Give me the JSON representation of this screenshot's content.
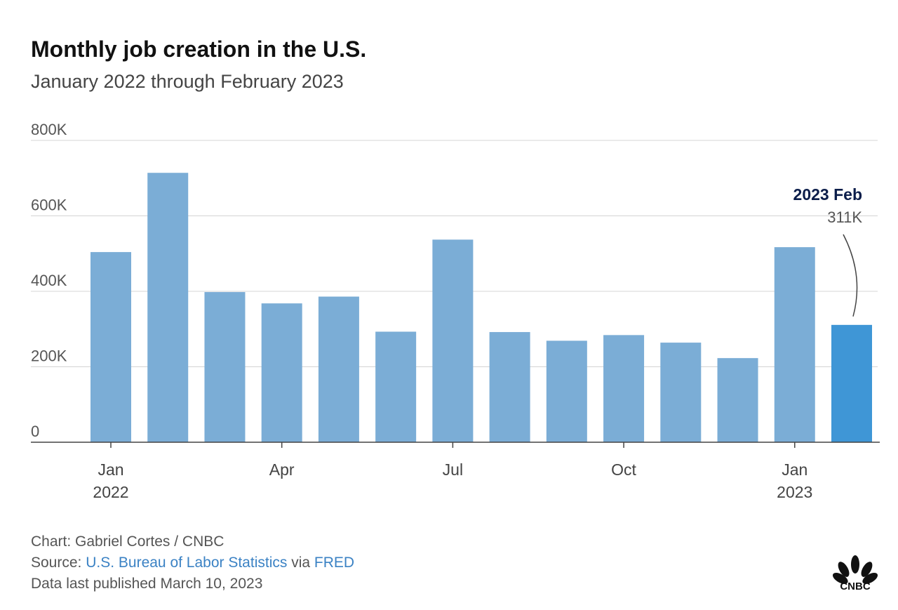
{
  "header": {
    "title": "Monthly job creation in the U.S.",
    "subtitle": "January 2022 through February 2023"
  },
  "chart_data": {
    "type": "bar",
    "title": "Monthly job creation in the U.S.",
    "subtitle": "January 2022 through February 2023",
    "categories": [
      "Jan 2022",
      "Feb 2022",
      "Mar 2022",
      "Apr 2022",
      "May 2022",
      "Jun 2022",
      "Jul 2022",
      "Aug 2022",
      "Sep 2022",
      "Oct 2022",
      "Nov 2022",
      "Dec 2022",
      "Jan 2023",
      "Feb 2023"
    ],
    "values": [
      504000,
      714000,
      398000,
      368000,
      386000,
      293000,
      537000,
      292000,
      269000,
      284000,
      264000,
      223000,
      517000,
      311000
    ],
    "ylim": [
      0,
      800000
    ],
    "yticks": [
      0,
      200000,
      400000,
      600000,
      800000
    ],
    "ytick_labels": [
      "0",
      "200K",
      "400K",
      "600K",
      "800K"
    ],
    "xticks": [
      {
        "index": 0,
        "month": "Jan",
        "year": "2022"
      },
      {
        "index": 3,
        "month": "Apr",
        "year": ""
      },
      {
        "index": 6,
        "month": "Jul",
        "year": ""
      },
      {
        "index": 9,
        "month": "Oct",
        "year": ""
      },
      {
        "index": 12,
        "month": "Jan",
        "year": "2023"
      }
    ],
    "annotation": {
      "index": 13,
      "label": "2023 Feb",
      "value_label": "311K"
    },
    "grid": true,
    "colors": {
      "bar": "#7badd6",
      "highlight": "#3f96d6",
      "annotation_title": "#0b1d4a",
      "grid": "#d4d4d4",
      "axis": "#444444"
    }
  },
  "footer": {
    "credit": "Chart: Gabriel Cortes / CNBC",
    "source_prefix": "Source:",
    "source_link": "U.S. Bureau of Labor Statistics",
    "source_via": "via",
    "source_link2": "FRED",
    "published": "Data last published March 10, 2023"
  },
  "logo": {
    "icon": "cnbc-peacock-icon",
    "text": "CNBC"
  }
}
